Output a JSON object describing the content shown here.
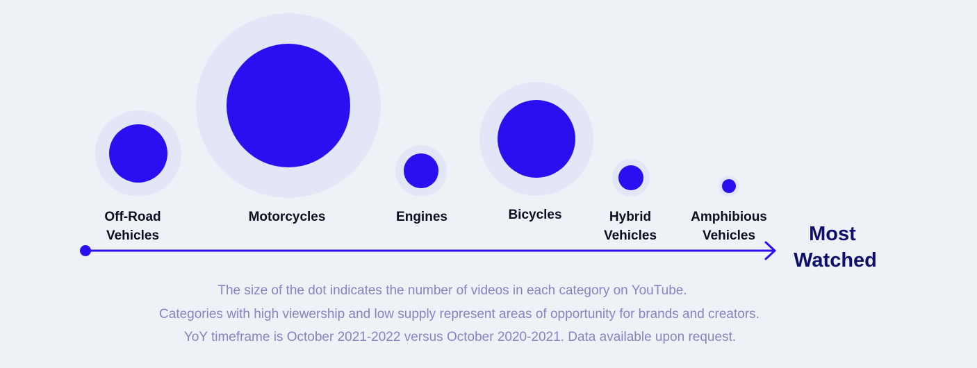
{
  "chart_data": {
    "type": "scatter",
    "encoding": "Categories ordered along an axis from least to most watched; dot size indicates the number of videos in each category on YouTube",
    "axis_end_label": [
      "Most",
      "Watched"
    ],
    "categories": [
      {
        "label_lines": [
          "Off-Road",
          "Vehicles"
        ],
        "dot_size": 42,
        "halo_size": 62
      },
      {
        "label_lines": [
          "Motorcycles"
        ],
        "dot_size": 89,
        "halo_size": 133
      },
      {
        "label_lines": [
          "Engines"
        ],
        "dot_size": 25,
        "halo_size": 37
      },
      {
        "label_lines": [
          "Bicycles"
        ],
        "dot_size": 56,
        "halo_size": 82
      },
      {
        "label_lines": [
          "Hybrid",
          "Vehicles"
        ],
        "dot_size": 18,
        "halo_size": 27
      },
      {
        "label_lines": [
          "Amphibious",
          "Vehicles"
        ],
        "dot_size": 10,
        "halo_size": 15
      }
    ],
    "footnotes": [
      "The size of the dot indicates the number of videos in each category on YouTube.",
      "Categories with high viewership and low supply represent areas of opportunity for brands and creators.",
      "YoY timeframe is October 2021-2022 versus October 2020-2021. Data available upon request."
    ],
    "colors": {
      "dot": "#2a10f0",
      "halo": "#e3e6f7",
      "axis": "#2a10f0",
      "label": "#0d0d1f",
      "end_label": "#0d0f6b",
      "footnote": "#8683bf",
      "background": "#eef2f6"
    }
  }
}
